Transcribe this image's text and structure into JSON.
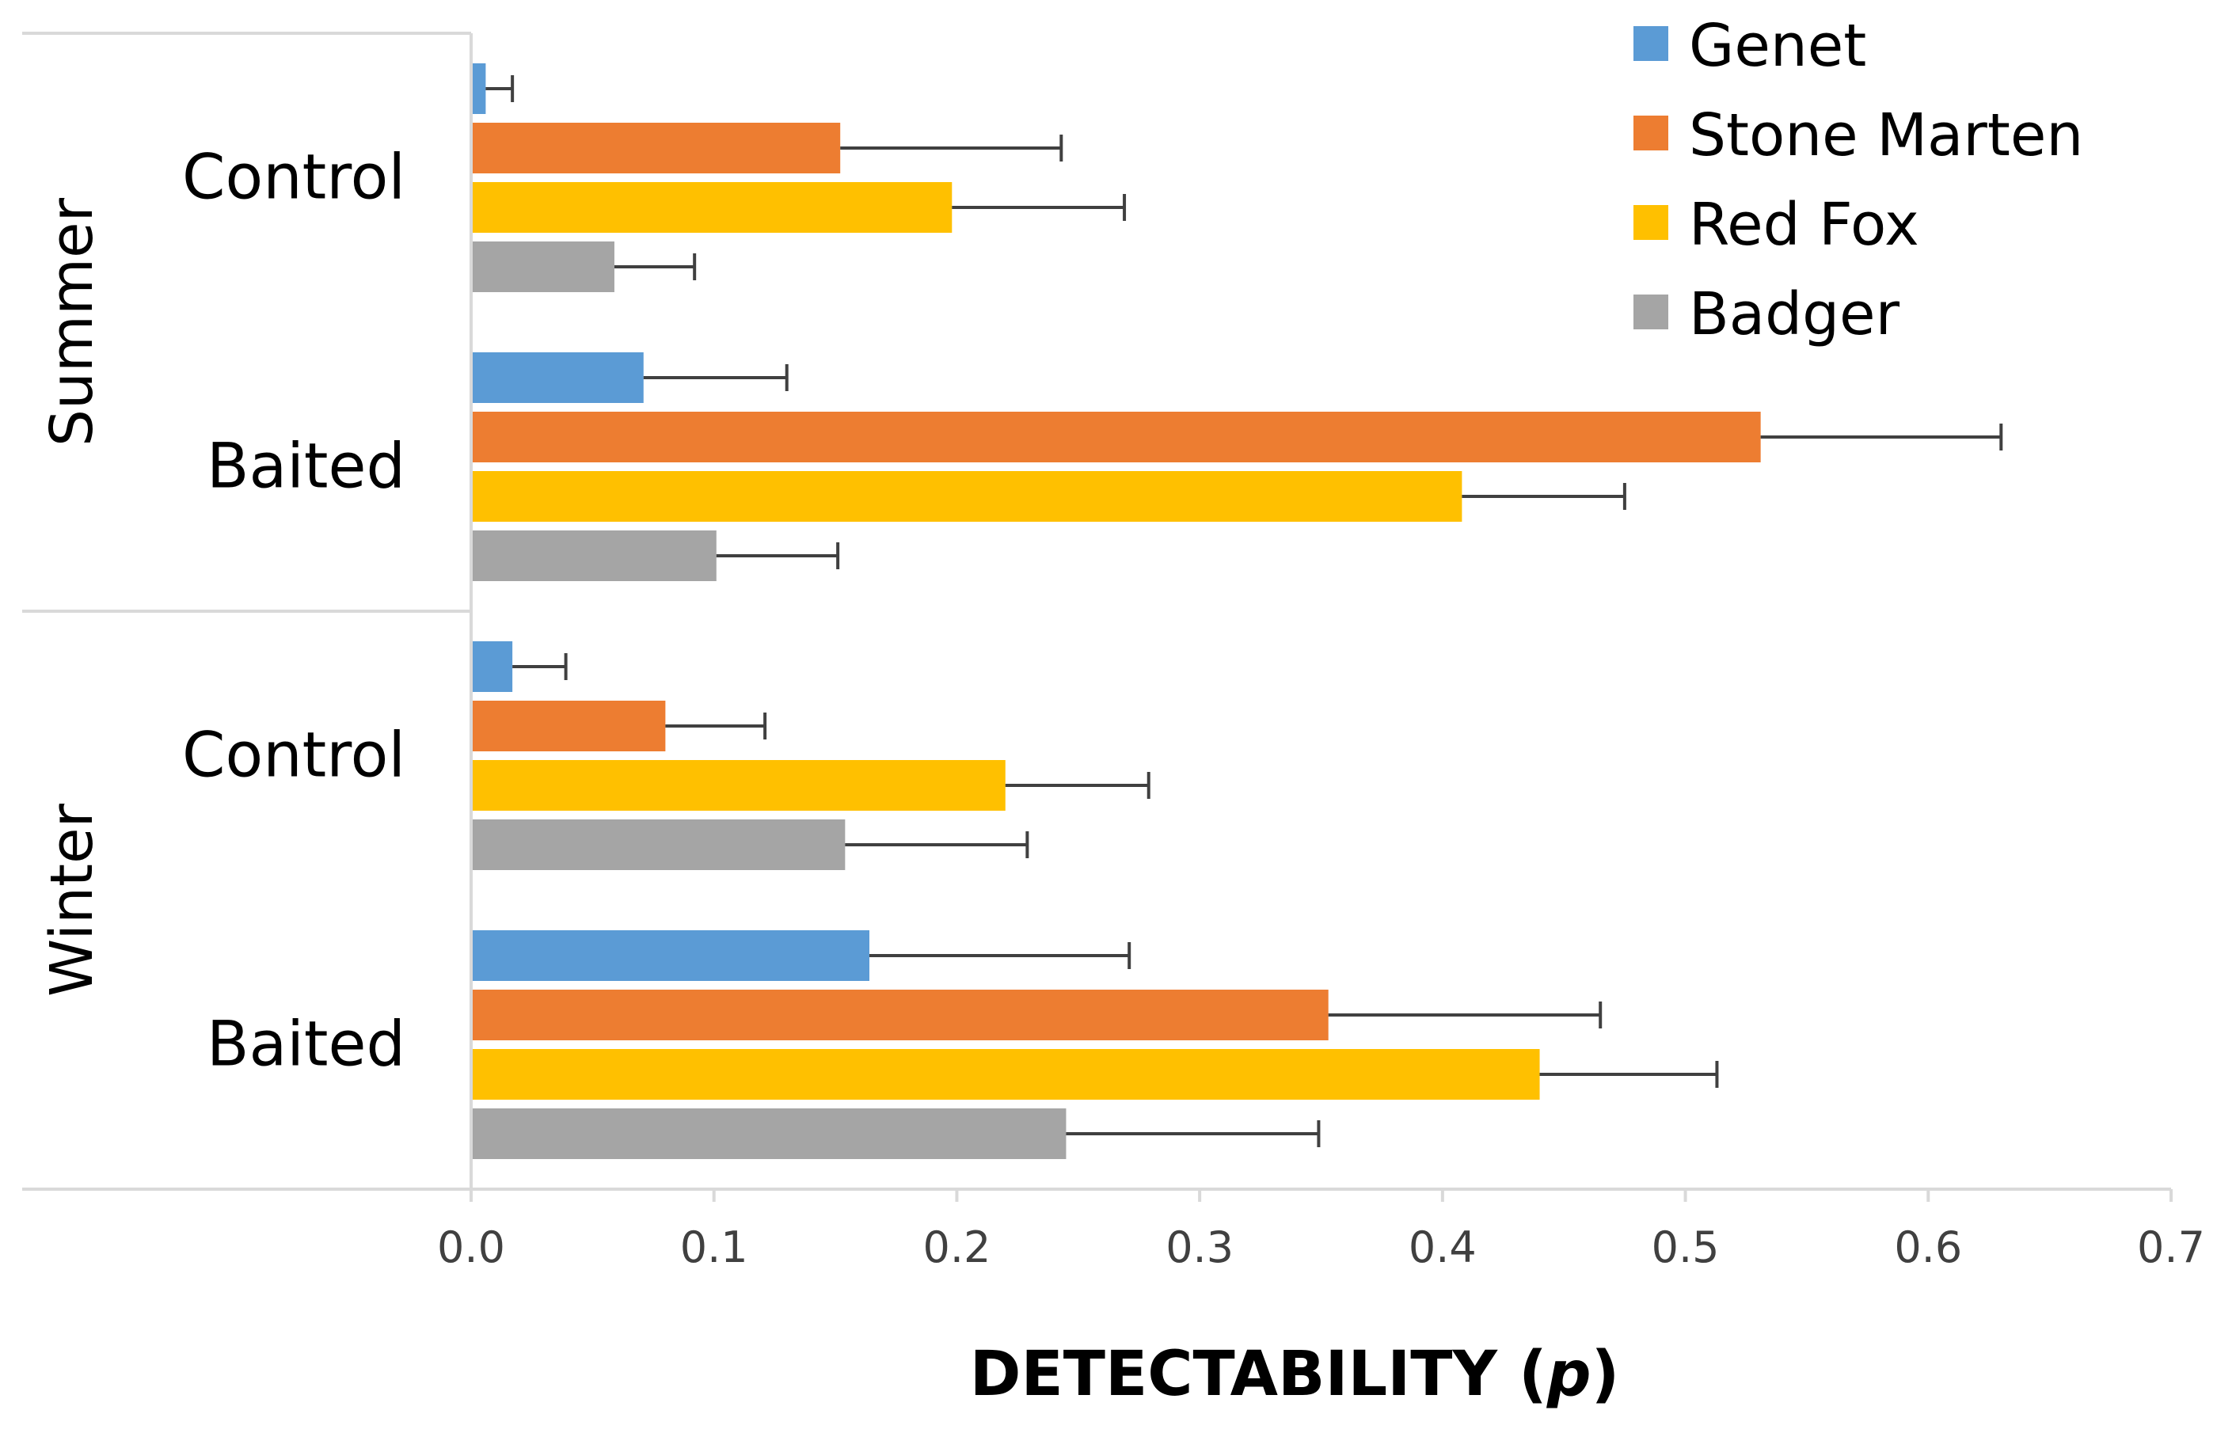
{
  "chart_data": {
    "type": "bar",
    "orientation": "horizontal",
    "title": "",
    "xlabel": "DETECTABILITY (",
    "xlabel_var": "p",
    "xlabel_end": ")",
    "ylabel": "",
    "xlim": [
      0,
      0.7
    ],
    "xticks": [
      0.0,
      0.1,
      0.2,
      0.3,
      0.4,
      0.5,
      0.6,
      0.7
    ],
    "xtick_labels": [
      "0.0",
      "0.1",
      "0.2",
      "0.3",
      "0.4",
      "0.5",
      "0.6",
      "0.7"
    ],
    "grid": false,
    "legend_position": "top-right",
    "seasons": [
      "Summer",
      "Winter"
    ],
    "categories": [
      "Control",
      "Baited",
      "Control",
      "Baited"
    ],
    "category_season": [
      0,
      0,
      1,
      1
    ],
    "series": [
      {
        "name": "Genet",
        "color": "#5b9bd5",
        "values": [
          0.006,
          0.071,
          0.017,
          0.164
        ],
        "errors": [
          0.011,
          0.059,
          0.022,
          0.107
        ]
      },
      {
        "name": "Stone Marten",
        "color": "#ed7d31",
        "values": [
          0.152,
          0.531,
          0.08,
          0.353
        ],
        "errors": [
          0.091,
          0.099,
          0.041,
          0.112
        ]
      },
      {
        "name": "Red Fox",
        "color": "#ffc000",
        "values": [
          0.198,
          0.408,
          0.22,
          0.44
        ],
        "errors": [
          0.071,
          0.067,
          0.059,
          0.073
        ]
      },
      {
        "name": "Badger",
        "color": "#a5a5a5",
        "values": [
          0.059,
          0.101,
          0.154,
          0.245
        ],
        "errors": [
          0.033,
          0.05,
          0.075,
          0.104
        ]
      }
    ]
  }
}
